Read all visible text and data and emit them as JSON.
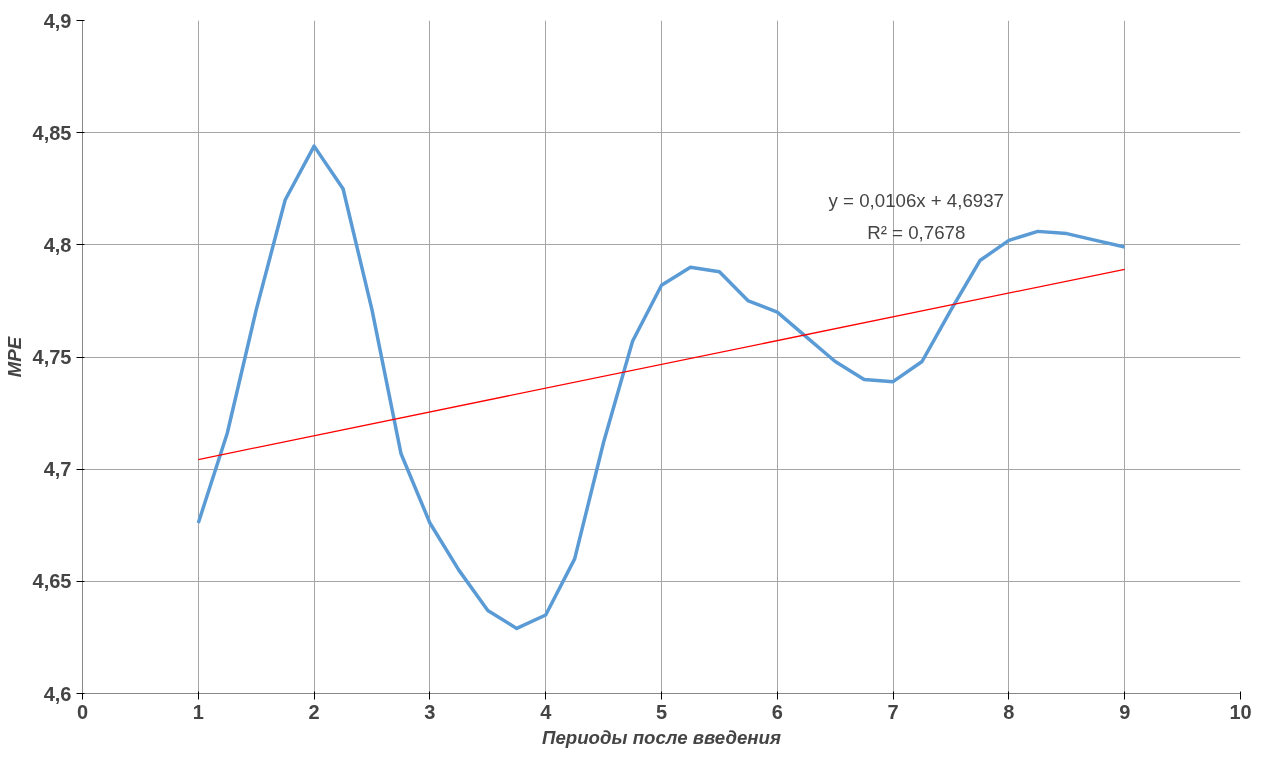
{
  "chart_data": {
    "type": "line",
    "xlabel": "Периоды после введения",
    "ylabel": "MPE",
    "xlim": [
      0,
      10
    ],
    "xticks": [
      0,
      1,
      2,
      3,
      4,
      5,
      6,
      7,
      8,
      9,
      10
    ],
    "ylim": [
      4.6,
      4.9
    ],
    "yticks": [
      {
        "value": 4.6,
        "label": "4,6"
      },
      {
        "value": 4.65,
        "label": "4,65"
      },
      {
        "value": 4.7,
        "label": "4,7"
      },
      {
        "value": 4.75,
        "label": "4,75"
      },
      {
        "value": 4.8,
        "label": "4,8"
      },
      {
        "value": 4.85,
        "label": "4,85"
      },
      {
        "value": 4.9,
        "label": "4,9"
      }
    ],
    "grid": true,
    "marker": "none",
    "line_style": "solid",
    "series": [
      {
        "color": "#5b9bd5",
        "x": [
          1,
          1.25,
          1.5,
          1.75,
          2,
          2.25,
          2.5,
          2.75,
          3,
          3.25,
          3.5,
          3.75,
          4,
          4.25,
          4.5,
          4.75,
          5,
          5.25,
          5.5,
          5.75,
          6,
          6.25,
          6.5,
          6.75,
          7,
          7.25,
          7.5,
          7.75,
          8,
          8.25,
          8.5,
          8.75,
          9
        ],
        "values": [
          4.676,
          4.716,
          4.771,
          4.82,
          4.844,
          4.825,
          4.771,
          4.707,
          4.676,
          4.655,
          4.637,
          4.629,
          4.635,
          4.66,
          4.712,
          4.757,
          4.782,
          4.79,
          4.788,
          4.775,
          4.77,
          4.759,
          4.748,
          4.74,
          4.739,
          4.748,
          4.771,
          4.793,
          4.802,
          4.806,
          4.805,
          4.802,
          4.799
        ]
      },
      {
        "color": "#ff0000",
        "x": [
          1,
          9
        ],
        "values": [
          4.7043,
          4.7891
        ]
      }
    ],
    "annotations": [
      "y = 0,0106x + 4,6937",
      "R² = 0,7678"
    ]
  }
}
